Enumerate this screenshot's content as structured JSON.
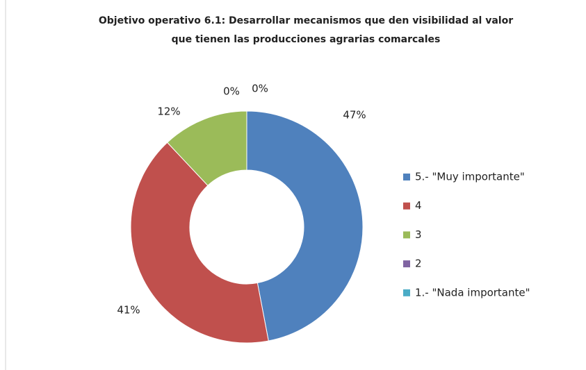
{
  "chart_data": {
    "type": "donut",
    "title": [
      "Objetivo operativo 6.1: Desarrollar mecanismos que den visibilidad al valor",
      "que tienen las producciones  agrarias comarcales"
    ],
    "categories": [
      "5.- \"Muy importante\"",
      "4",
      "3",
      "2",
      "1.- \"Nada importante\""
    ],
    "values": [
      47,
      41,
      12,
      0,
      0
    ],
    "value_labels": [
      "47%",
      "41%",
      "12%",
      "0%",
      "0%"
    ],
    "colors": [
      "#4f81bd",
      "#c0504d",
      "#9bbb59",
      "#8064a2",
      "#4bacc6"
    ],
    "legend": "right"
  }
}
